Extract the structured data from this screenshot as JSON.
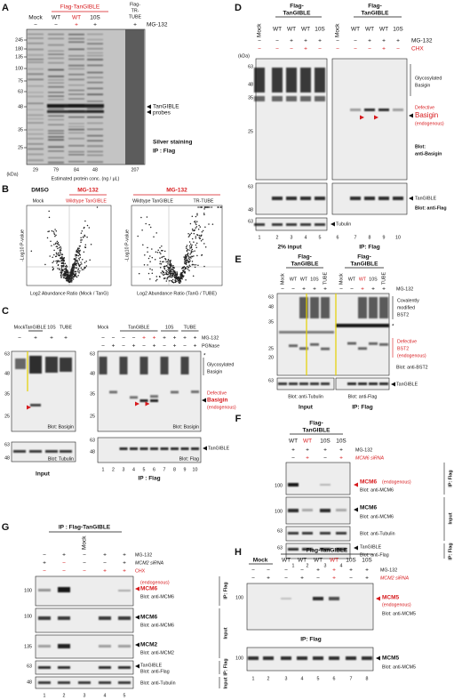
{
  "A": {
    "letter": "A",
    "header": "Flag-TanGIBLE",
    "tube_header": [
      "Flag-",
      "TR-",
      "TUBE"
    ],
    "lanes": [
      "Mock",
      "WT",
      "WT",
      "10S"
    ],
    "mg132": [
      "−",
      "−",
      "+",
      "+",
      "+"
    ],
    "mg132_label": "MG-132",
    "markers": [
      245,
      180,
      135,
      100,
      75,
      63,
      48,
      35,
      25
    ],
    "probes": [
      "TanGIBLE",
      "probes"
    ],
    "stain": "Silver staining",
    "ip": "IP : Flag",
    "conc": [
      29,
      79,
      84,
      48,
      207
    ],
    "kda": "(kDa)",
    "conc_label": "Estimated protein conc. (ng / μL)"
  },
  "B": {
    "letter": "B",
    "left_cond": "DMSO",
    "left_treat": "MG-132",
    "left_a": "Mock",
    "left_b": "Wildtype TanGIBLE",
    "right_treat": "MG-132",
    "right_a": "Wildtype TanGIBLE",
    "right_b": "TR-TUBE",
    "ylabel": [
      "-Log10 P-value",
      "-Log10 P-value"
    ],
    "xlabel": [
      "Log2 Abundance Ratio (Mock / TanG)",
      "Log2 Abundance Ratio (TanG / TUBE)"
    ]
  },
  "C": {
    "letter": "C",
    "left_lanes": [
      "Mock",
      "TanGIBLE",
      "10S",
      "TUBE"
    ],
    "left_mg132": [
      "−",
      "+",
      "+",
      "+"
    ],
    "right_header": [
      "Mock",
      "TanGIBLE",
      "10S",
      "TUBE"
    ],
    "right_mg132": [
      "−",
      "−",
      "−",
      "−",
      "+",
      "+",
      "+",
      "+",
      "+",
      "+"
    ],
    "pgnase": [
      "−",
      "+",
      "−",
      "+",
      "−",
      "+",
      "−",
      "+",
      "−",
      "+"
    ],
    "mg132_label": "MG-132",
    "pgnase_label": "PGNase",
    "markers_top": [
      63,
      48,
      35,
      25
    ],
    "markers_bottom": [
      63,
      48
    ],
    "right_markers_top": [
      63,
      48,
      35,
      25
    ],
    "right_markers_bottom": [
      63,
      48
    ],
    "star": "*",
    "glyco": [
      "Glycosylated",
      "Basigin"
    ],
    "defective": [
      "Defective",
      "Basigin",
      "(endogenous)"
    ],
    "blot_basigin": [
      "Blot: Basigin",
      "Blot: Basigin"
    ],
    "blot_tubulin": "Blot: Tubulin",
    "tanG": "TanGIBLE",
    "blot_flag": "Blot: Flag",
    "lane_numbers": [
      1,
      2,
      3,
      4,
      5,
      6,
      7,
      8,
      9,
      10
    ],
    "input": "Input",
    "ip": "IP : Flag"
  },
  "D": {
    "letter": "D",
    "header_left": [
      "Flag-",
      "TanGIBLE"
    ],
    "header_right": [
      "Flag-",
      "TanGIBLE"
    ],
    "lanes_left": [
      "Mock",
      "WT",
      "WT",
      "WT",
      "10S"
    ],
    "lanes_right": [
      "Mock",
      "WT",
      "WT",
      "WT",
      "10S"
    ],
    "mg132": [
      "−",
      "−",
      "+",
      "+",
      "+",
      "−",
      "−",
      "+",
      "+",
      "+"
    ],
    "chx": [
      "−",
      "−",
      "−",
      "+",
      "−",
      "−",
      "−",
      "−",
      "+",
      "−"
    ],
    "mg132_label": "MG-132",
    "chx_label": "CHX",
    "kda": "(kDa)",
    "markers_top": [
      63,
      48,
      35,
      25
    ],
    "markers_mid": [
      63,
      48
    ],
    "markers_bottom": [
      63
    ],
    "glyco": [
      "Glycosylated",
      "Basigin"
    ],
    "defective": [
      "Defective",
      "Basigin",
      "(endogenous)"
    ],
    "blot_basigin": [
      "Blot:",
      "anti-Basigin"
    ],
    "tanG": "TanGIBLE",
    "blot_flag": "Blot: anti-Flag",
    "tubulin": "Tubulin",
    "lane_numbers": [
      1,
      2,
      3,
      4,
      5,
      6,
      7,
      8,
      9,
      10
    ],
    "input": "2% input",
    "ip": "IP: Flag"
  },
  "E": {
    "letter": "E",
    "header_left": [
      "Flag-",
      "TanGIBLE"
    ],
    "header_right": [
      "Flag-",
      "TanGIBLE"
    ],
    "lanes_left": [
      "Mock",
      "WT",
      "WT",
      "10S",
      "TUBE"
    ],
    "lanes_right": [
      "Mock",
      "WT",
      "WT",
      "10S",
      "TUBE"
    ],
    "mg132": [
      "−",
      "−",
      "+",
      "+",
      "+",
      "−",
      "−",
      "+",
      "+",
      "+"
    ],
    "mg132_label": "MG-132",
    "markers": [
      63,
      48,
      35,
      25,
      20
    ],
    "markers_bottom": [
      63
    ],
    "covalent": [
      "Covalently",
      "modified",
      "BST2"
    ],
    "star": "*",
    "defective": [
      "Defective",
      "BST2",
      "(endogenous)"
    ],
    "blot_bst2": "Blot: anti-BST2",
    "tanG": "TanGIBLE",
    "blot_tub": "Blot: anti-Tubulin",
    "blot_flag": "Blot: anti-Flag",
    "input": "Input",
    "ip": "IP: Flag"
  },
  "F": {
    "letter": "F",
    "header": [
      "Flag-",
      "TanGIBLE"
    ],
    "lanes": [
      "WT",
      "WT",
      "10S",
      "10S"
    ],
    "mg132": [
      "+",
      "+",
      "+",
      "+"
    ],
    "sirna": [
      "−",
      "+",
      "−",
      "+"
    ],
    "mg132_label": "MG-132",
    "sirna_label": "MCM6 siRNA",
    "markers": [
      100,
      100,
      63,
      63
    ],
    "mcm6_ip": "MCM6",
    "endogenous": "(endogenous)",
    "blot_mcm6": [
      "Blot: anti-MCM6",
      "Blot: anti-MCM6"
    ],
    "mcm6_in": "MCM6",
    "blot_tub": "Blot: anti-Tubulin",
    "tanG": "TanGIBLE",
    "blot_flag": "Blot: anti-Flag",
    "side": [
      "IP: Flag",
      "Input",
      "IP: Flag"
    ],
    "lane_numbers": [
      1,
      2,
      3,
      4
    ]
  },
  "G": {
    "letter": "G",
    "header": "IP : Flag-TanGIBLE",
    "mock": "Mock",
    "mg132": [
      "−",
      "+",
      "−",
      "+",
      "+"
    ],
    "sirna": [
      "+",
      "−",
      "−",
      "−",
      "+"
    ],
    "chx": [
      "−",
      "−",
      "−",
      "+",
      "+"
    ],
    "mg132_label": "MG-132",
    "sirna_label": "MCM2 siRNA",
    "chx_label": "CHX",
    "markers": [
      100,
      100,
      135,
      63,
      48
    ],
    "endogenous": "(endogenous)",
    "mcm6_ip": "MCM6",
    "blot_mcm6": [
      "Blot: anti-MCM6",
      "Blot: anti-MCM6"
    ],
    "mcm6_in": "MCM6",
    "mcm2": "MCM2",
    "blot_mcm2": "Blot: anti-MCM2",
    "tanG": "TanGIBLE",
    "blot_flag": "Blot: anti-Flag",
    "blot_tub": "Blot: anti-Tubulin",
    "side": [
      "IP: Flag",
      "Input",
      "IP: Flag",
      "Input"
    ],
    "lane_numbers": [
      1,
      2,
      3,
      4,
      5
    ]
  },
  "H": {
    "letter": "H",
    "header": "Flag-TanGIBLE",
    "mock": "Mock",
    "lanes": [
      "WT",
      "WT",
      "WT",
      "WT",
      "10S",
      "10S"
    ],
    "mg132": [
      "−",
      "−",
      "−",
      "−",
      "+",
      "+",
      "+",
      "+"
    ],
    "sirna": [
      "−",
      "+",
      "−",
      "+",
      "−",
      "+",
      "−",
      "+"
    ],
    "mg132_label": "MG-132",
    "sirna_label": "MCM2 siRNA",
    "markers": [
      100,
      100
    ],
    "mcm5_ip": [
      "MCM5",
      "(endogenous)"
    ],
    "blot_mcm5": [
      "Blot: anti-MCM5",
      "Blot: anti-MCM5"
    ],
    "mcm5_in": "MCM5",
    "ip": "IP: Flag",
    "lane_numbers": [
      1,
      2,
      3,
      4,
      5,
      6,
      7,
      8
    ]
  }
}
